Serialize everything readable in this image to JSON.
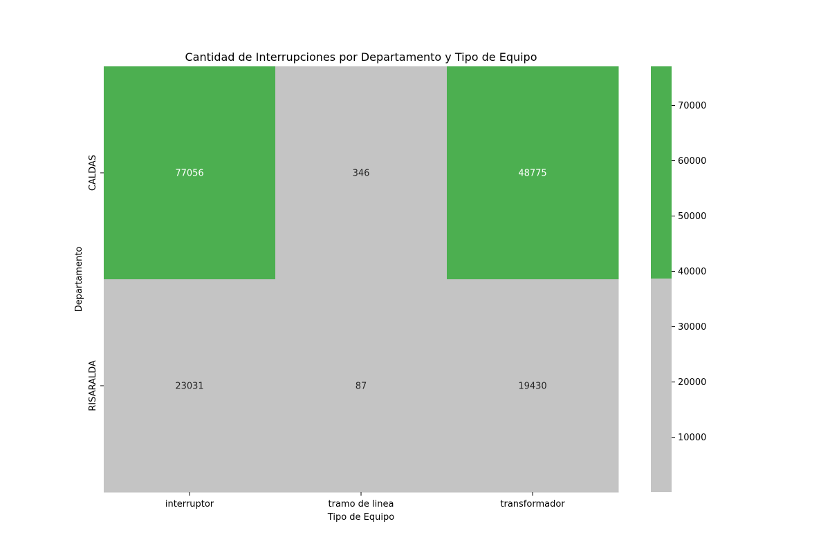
{
  "chart_data": {
    "type": "heatmap",
    "title": "Cantidad de Interrupciones por Departamento y Tipo de Equipo",
    "xlabel": "Tipo de Equipo",
    "ylabel": "Departamento",
    "x_categories": [
      "interruptor",
      "tramo de linea",
      "transformador"
    ],
    "y_categories": [
      "CALDAS",
      "RISARALDA"
    ],
    "values": [
      [
        77056,
        346,
        48775
      ],
      [
        23031,
        87,
        19430
      ]
    ],
    "colormap": {
      "type": "two-bin",
      "low_color": "#c4c4c4",
      "high_color": "#4caf50",
      "threshold": 38700,
      "vmin": 87,
      "vmax": 77056
    },
    "colorbar_ticks": [
      10000,
      20000,
      30000,
      40000,
      50000,
      60000,
      70000
    ],
    "colorbar_tick_labels": [
      "10000",
      "20000",
      "30000",
      "40000",
      "50000",
      "60000",
      "70000"
    ],
    "cell_label_colors": {
      "on_high": "#ffffff",
      "on_low": "#262626"
    }
  }
}
